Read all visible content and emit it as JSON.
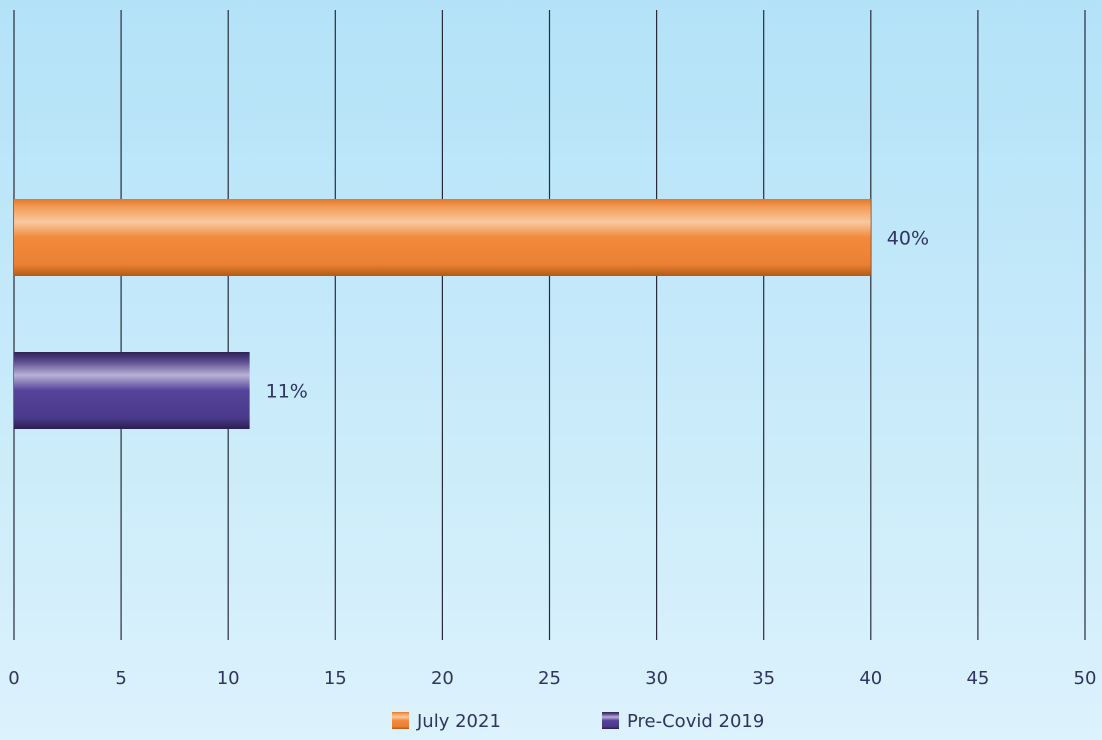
{
  "chart_data": {
    "type": "bar",
    "orientation": "horizontal",
    "title": "",
    "xlabel": "",
    "ylabel": "",
    "xlim": [
      0,
      50
    ],
    "x_ticks": [
      0,
      5,
      10,
      15,
      20,
      25,
      30,
      35,
      40,
      45,
      50
    ],
    "grid": true,
    "legend_position": "bottom",
    "series": [
      {
        "name": "July 2021",
        "value": 40,
        "label": "40%",
        "color": "#f0883a"
      },
      {
        "name": "Pre-Covid 2019",
        "value": 11,
        "label": "11%",
        "color": "#4b3a8c"
      }
    ]
  }
}
